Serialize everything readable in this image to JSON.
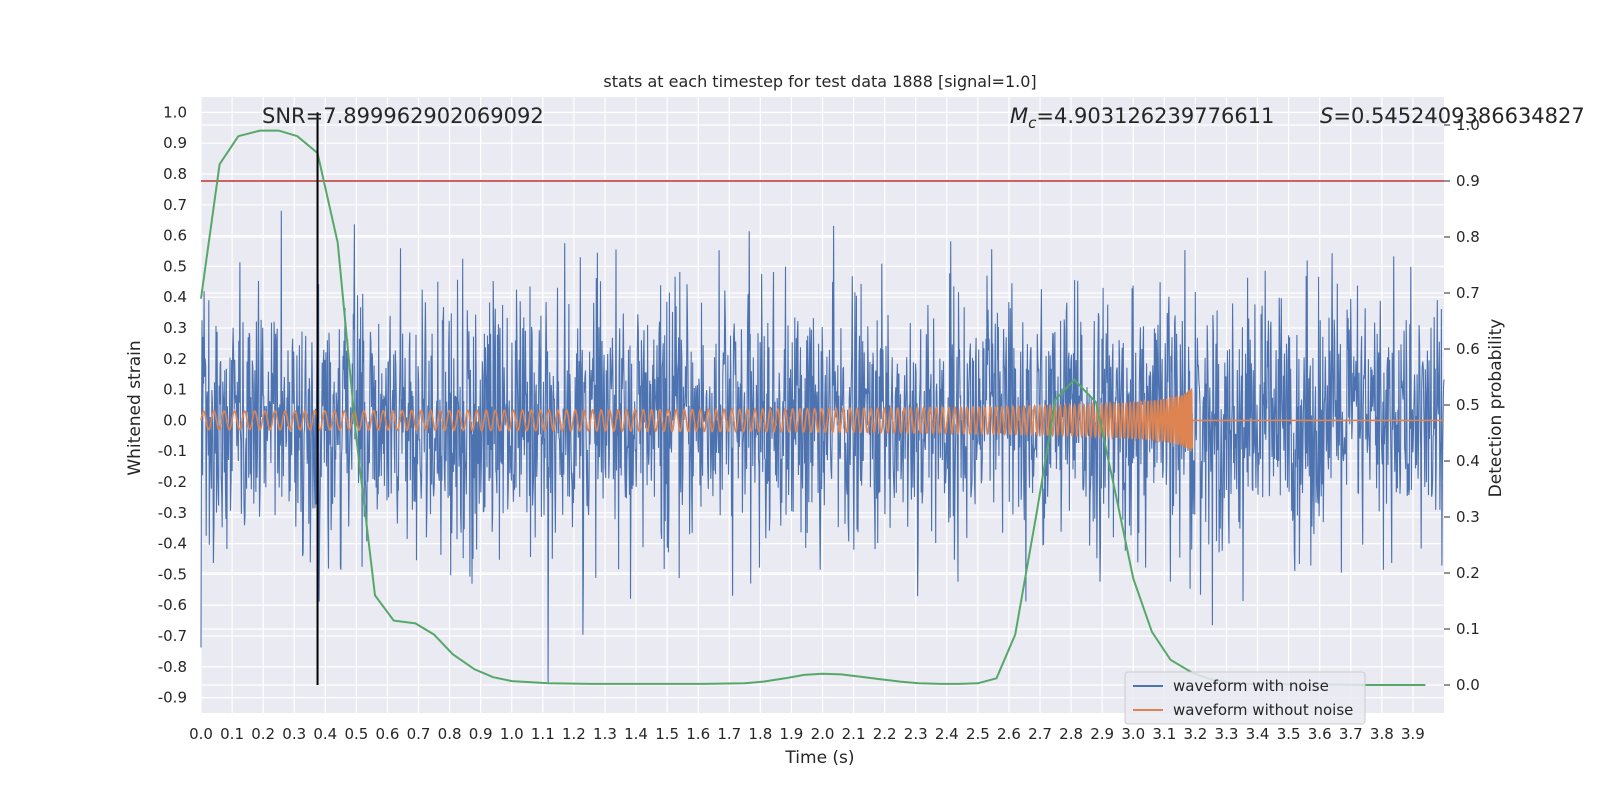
{
  "chart_data": {
    "type": "line",
    "title": "stats at each timestep for test data 1888 [signal=1.0]",
    "xlabel": "Time (s)",
    "ylabel": "Whitened strain",
    "y2label": "Detection probability",
    "xlim": [
      0.0,
      4.0
    ],
    "ylim": [
      -0.95,
      1.05
    ],
    "y2lim": [
      -0.05,
      1.05
    ],
    "x_ticks": [
      "0.0",
      "0.1",
      "0.2",
      "0.3",
      "0.4",
      "0.5",
      "0.6",
      "0.7",
      "0.8",
      "0.9",
      "1.0",
      "1.1",
      "1.2",
      "1.3",
      "1.4",
      "1.5",
      "1.6",
      "1.7",
      "1.8",
      "1.9",
      "2.0",
      "2.1",
      "2.2",
      "2.3",
      "2.4",
      "2.5",
      "2.6",
      "2.7",
      "2.8",
      "2.9",
      "3.0",
      "3.1",
      "3.2",
      "3.3",
      "3.4",
      "3.5",
      "3.6",
      "3.7",
      "3.8",
      "3.9"
    ],
    "y_ticks": [
      "1.0",
      "0.9",
      "0.8",
      "0.7",
      "0.6",
      "0.5",
      "0.4",
      "0.3",
      "0.2",
      "0.1",
      "0.0",
      "-0.1",
      "-0.2",
      "-0.3",
      "-0.4",
      "-0.5",
      "-0.6",
      "-0.7",
      "-0.8",
      "-0.9"
    ],
    "y2_ticks": [
      "1.0",
      "0.9",
      "0.8",
      "0.7",
      "0.6",
      "0.5",
      "0.4",
      "0.3",
      "0.2",
      "0.1",
      "0.0"
    ],
    "grid": true,
    "legend_position": "bottom-right",
    "annotations": {
      "snr": "SNR=7.899962902069092",
      "mc": "=4.903126239776611",
      "mc_symbol": "M",
      "mc_sub": "c",
      "s": "=0.5452409386634827",
      "s_symbol": "S"
    },
    "threshold_line": {
      "y": 0.9,
      "axis": "right",
      "color": "#c44e52"
    },
    "marker_line": {
      "x": 0.375,
      "color": "#000000"
    },
    "series": [
      {
        "name": "waveform with noise",
        "axis": "left",
        "color": "#4c72b0",
        "description_values": {
          "approx_range": [
            -0.85,
            1.0
          ],
          "sample_rate_hz": 2048
        }
      },
      {
        "name": "waveform without noise",
        "axis": "left",
        "color": "#dd8452",
        "chirp": {
          "start_freq_hz": 30,
          "merger_time_s": 3.19,
          "amp_start": 0.03,
          "amp_peak": 0.18
        }
      },
      {
        "name": "",
        "axis": "right",
        "color": "#55a868",
        "x": [
          0.0,
          0.06,
          0.12,
          0.19,
          0.25,
          0.31,
          0.375,
          0.44,
          0.5,
          0.56,
          0.62,
          0.69,
          0.75,
          0.81,
          0.88,
          0.94,
          1.0,
          1.12,
          1.25,
          1.38,
          1.5,
          1.62,
          1.75,
          1.81,
          1.88,
          1.94,
          2.0,
          2.06,
          2.12,
          2.19,
          2.25,
          2.31,
          2.38,
          2.44,
          2.5,
          2.56,
          2.62,
          2.69,
          2.75,
          2.81,
          2.88,
          2.94,
          3.0,
          3.06,
          3.12,
          3.19,
          3.25,
          3.31,
          3.38,
          3.5,
          3.62,
          3.75,
          3.88,
          3.94
        ],
        "values": [
          0.69,
          0.93,
          0.98,
          0.99,
          0.99,
          0.98,
          0.95,
          0.79,
          0.44,
          0.16,
          0.115,
          0.11,
          0.09,
          0.055,
          0.028,
          0.014,
          0.007,
          0.003,
          0.002,
          0.002,
          0.002,
          0.002,
          0.003,
          0.006,
          0.012,
          0.018,
          0.02,
          0.019,
          0.015,
          0.01,
          0.006,
          0.003,
          0.002,
          0.002,
          0.003,
          0.012,
          0.09,
          0.31,
          0.51,
          0.545,
          0.505,
          0.35,
          0.19,
          0.095,
          0.045,
          0.022,
          0.01,
          0.004,
          0.002,
          0.001,
          0.001,
          0.0,
          0.0,
          0.0
        ]
      }
    ]
  }
}
